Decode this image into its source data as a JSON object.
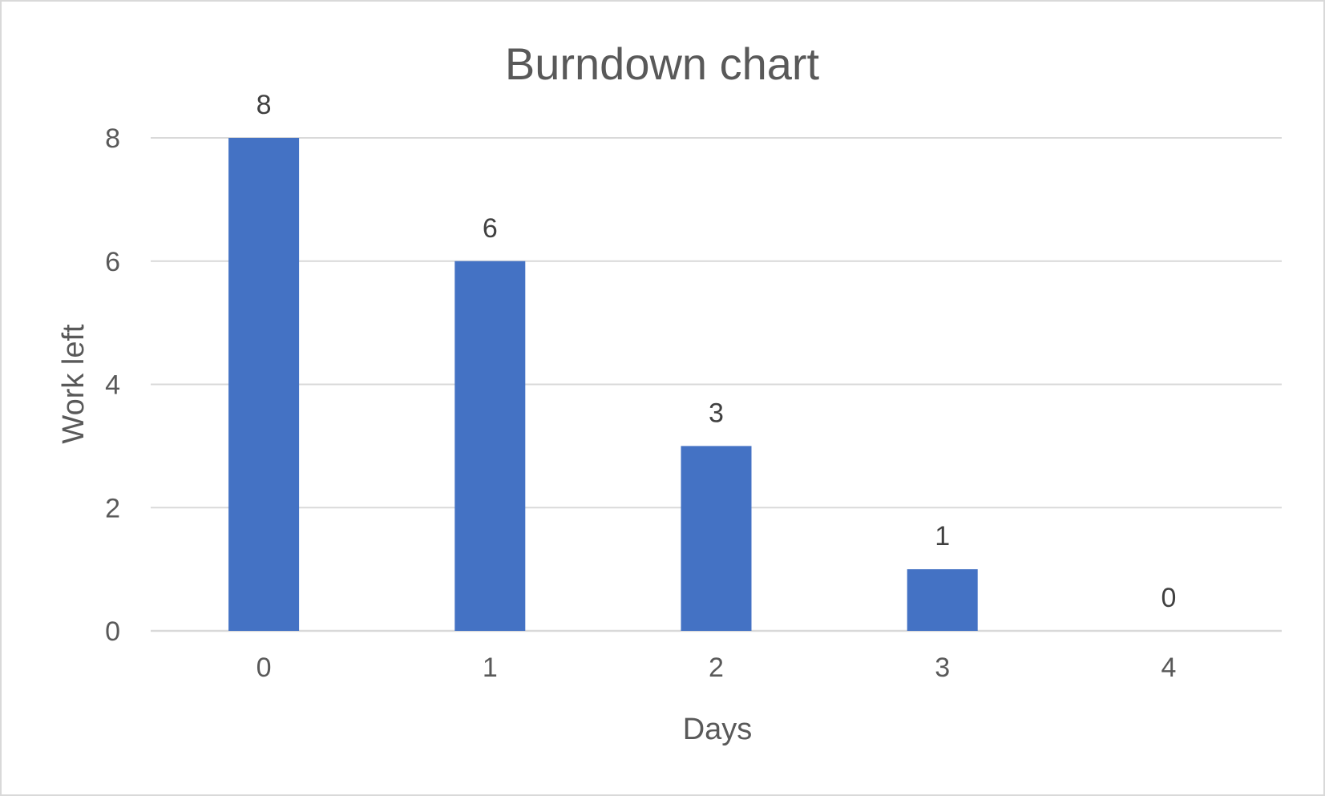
{
  "chart_data": {
    "type": "bar",
    "title": "Burndown chart",
    "xlabel": "Days",
    "ylabel": "Work left",
    "categories": [
      "0",
      "1",
      "2",
      "3",
      "4"
    ],
    "values": [
      8,
      6,
      3,
      1,
      0
    ],
    "data_labels": [
      "8",
      "6",
      "3",
      "1",
      "0"
    ],
    "yticks": [
      "0",
      "2",
      "4",
      "6",
      "8"
    ],
    "ylim": [
      0,
      8
    ],
    "grid": true,
    "legend": "none",
    "bar_color": "#4472C4"
  }
}
